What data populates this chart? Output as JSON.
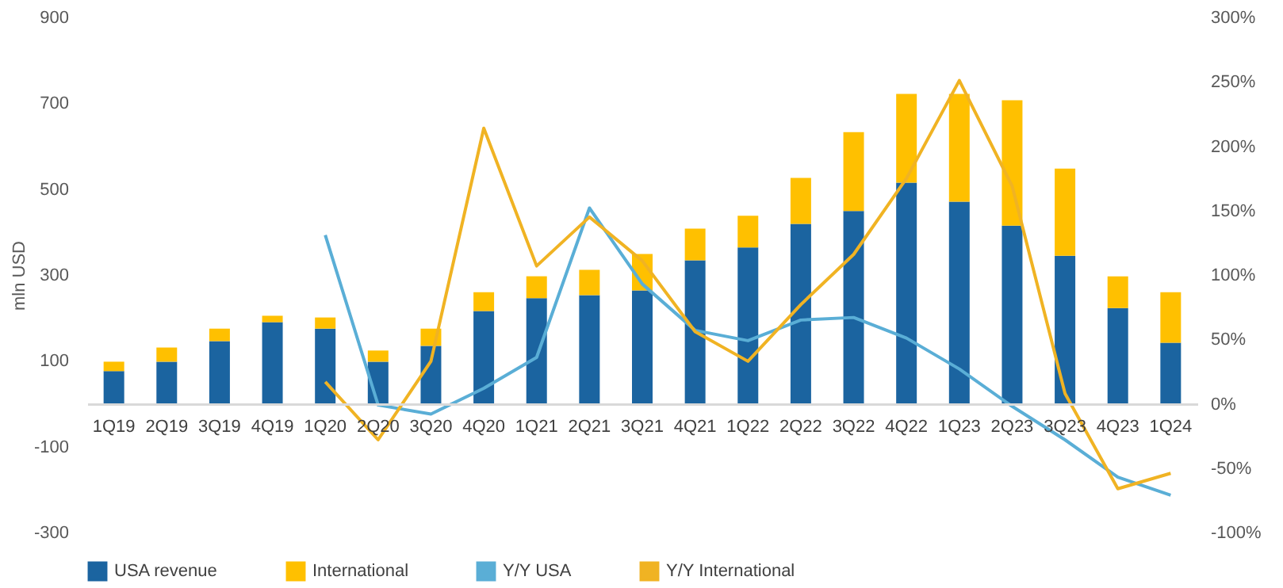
{
  "chart_data": {
    "type": "bar",
    "stacked": true,
    "ylabel": "mln USD",
    "categories": [
      "1Q19",
      "2Q19",
      "3Q19",
      "4Q19",
      "1Q20",
      "2Q20",
      "3Q20",
      "4Q20",
      "1Q21",
      "2Q21",
      "3Q21",
      "4Q21",
      "1Q22",
      "2Q22",
      "3Q22",
      "4Q22",
      "1Q23",
      "2Q23",
      "3Q23",
      "4Q23",
      "1Q24"
    ],
    "series": [
      {
        "name": "USA revenue",
        "color": "#1b64a0",
        "values": [
          76,
          98,
          146,
          190,
          175,
          98,
          135,
          216,
          246,
          253,
          264,
          334,
          364,
          419,
          449,
          515,
          471,
          415,
          345,
          223,
          142
        ]
      },
      {
        "name": "International",
        "color": "#ffc000",
        "values": [
          22,
          33,
          29,
          15,
          26,
          26,
          40,
          44,
          51,
          59,
          85,
          74,
          74,
          107,
          184,
          207,
          251,
          292,
          203,
          74,
          118
        ]
      },
      {
        "name": "Y/Y USA",
        "type": "line",
        "axis": "y2",
        "color": "#5aaed6",
        "values": [
          null,
          null,
          null,
          null,
          131,
          -1,
          -8,
          12,
          36,
          152,
          93,
          57,
          49,
          65,
          67,
          51,
          27,
          -2,
          -28,
          -57,
          -71
        ]
      },
      {
        "name": "Y/Y International",
        "type": "line",
        "axis": "y2",
        "color": "#f0b323",
        "values": [
          null,
          null,
          null,
          null,
          17,
          -28,
          33,
          214,
          107,
          145,
          111,
          56,
          33,
          77,
          116,
          175,
          251,
          169,
          8,
          -66,
          -54
        ]
      }
    ],
    "ylim": [
      -300,
      900
    ],
    "yticks": [
      -300,
      -100,
      100,
      300,
      500,
      700,
      900
    ],
    "y2lim": [
      -100,
      300
    ],
    "y2ticks": [
      {
        "value": -100,
        "label": "-100%"
      },
      {
        "value": -50,
        "label": "-50%"
      },
      {
        "value": 0,
        "label": "0%"
      },
      {
        "value": 50,
        "label": "50%"
      },
      {
        "value": 100,
        "label": "100%"
      },
      {
        "value": 150,
        "label": "150%"
      },
      {
        "value": 200,
        "label": "200%"
      },
      {
        "value": 250,
        "label": "250%"
      },
      {
        "value": 300,
        "label": "300%"
      }
    ],
    "grid": false,
    "legend": "bottom",
    "line_style": "solid",
    "marker": "none"
  }
}
